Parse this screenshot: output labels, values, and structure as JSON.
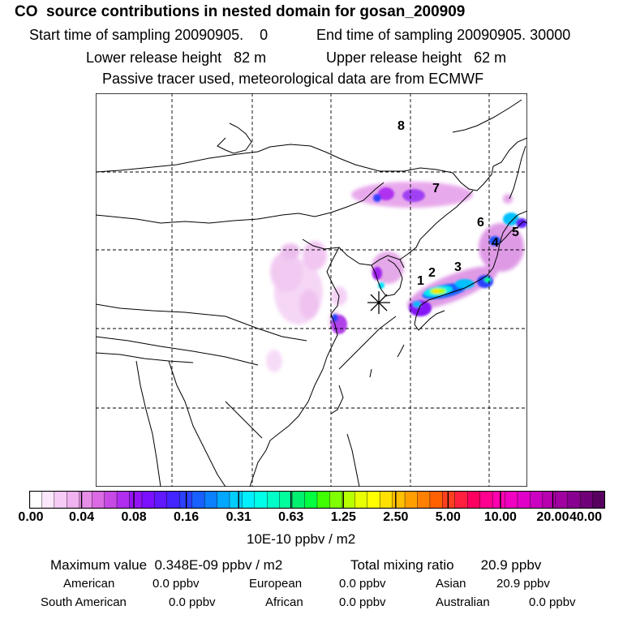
{
  "header": {
    "title": "CO  source contributions in nested domain for gosan_200909",
    "start_label": "Start time of sampling 20090905.    0",
    "end_label": "End time of sampling 20090905. 30000",
    "lower_release": "Lower release height   82 m",
    "upper_release": "Upper release height   62 m",
    "note": "Passive tracer used, meteorological data are from ECMWF"
  },
  "map": {
    "markers": [
      {
        "label": "1"
      },
      {
        "label": "2"
      },
      {
        "label": "3"
      },
      {
        "label": "4"
      },
      {
        "label": "5"
      },
      {
        "label": "6"
      },
      {
        "label": "7"
      },
      {
        "label": "8"
      }
    ],
    "receptor_symbol": "asterisk-receptor"
  },
  "colorbar": {
    "ticks": [
      "0.00",
      "0.04",
      "0.08",
      "0.16",
      "0.31",
      "0.63",
      "1.25",
      "2.50",
      "5.00",
      "10.00",
      "20.00",
      "40.00"
    ],
    "unit_label": "10E-10 ppbv / m2",
    "colors": [
      "#ffffff",
      "#fbe6fb",
      "#f6ccf6",
      "#f0b2f0",
      "#e78ee9",
      "#dc6ae4",
      "#c84ae6",
      "#b02ef0",
      "#9414f8",
      "#7a10ff",
      "#6018ff",
      "#4424ff",
      "#2c40ff",
      "#1860ff",
      "#0c80ff",
      "#00a8ff",
      "#00ccff",
      "#00f0ff",
      "#00ffe8",
      "#00ffc8",
      "#00ff9c",
      "#00f070",
      "#00ff40",
      "#40ff00",
      "#80ff00",
      "#b8ff00",
      "#e8ff00",
      "#ffff00",
      "#ffe000",
      "#ffc000",
      "#ffa000",
      "#ff8000",
      "#ff6000",
      "#ff4020",
      "#ff2040",
      "#ff0060",
      "#ff0090",
      "#ff00b0",
      "#f000c0",
      "#e000c8",
      "#cc00c0",
      "#b800b0",
      "#a000a0",
      "#880090",
      "#700078",
      "#580060"
    ]
  },
  "stats": {
    "maximum": "Maximum value  0.348E-09 ppbv / m2",
    "total": "Total mixing ratio       20.9 ppbv",
    "rows": [
      [
        {
          "name": "American",
          "value": "0.0 ppbv"
        },
        {
          "name": "European",
          "value": "0.0 ppbv"
        },
        {
          "name": "Asian",
          "value": "20.9 ppbv"
        }
      ],
      [
        {
          "name": "South American",
          "value": "0.0 ppbv"
        },
        {
          "name": "African",
          "value": "0.0 ppbv"
        },
        {
          "name": "Australian",
          "value": "0.0 ppbv"
        }
      ]
    ]
  }
}
